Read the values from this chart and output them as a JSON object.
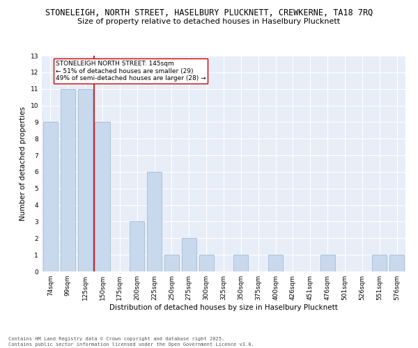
{
  "title_line1": "STONELEIGH, NORTH STREET, HASELBURY PLUCKNETT, CREWKERNE, TA18 7RQ",
  "title_line2": "Size of property relative to detached houses in Haselbury Plucknett",
  "xlabel": "Distribution of detached houses by size in Haselbury Plucknett",
  "ylabel": "Number of detached properties",
  "categories": [
    "74sqm",
    "99sqm",
    "125sqm",
    "150sqm",
    "175sqm",
    "200sqm",
    "225sqm",
    "250sqm",
    "275sqm",
    "300sqm",
    "325sqm",
    "350sqm",
    "375sqm",
    "400sqm",
    "426sqm",
    "451sqm",
    "476sqm",
    "501sqm",
    "526sqm",
    "551sqm",
    "576sqm"
  ],
  "values": [
    9,
    11,
    11,
    9,
    0,
    3,
    6,
    1,
    2,
    1,
    0,
    1,
    0,
    1,
    0,
    0,
    1,
    0,
    0,
    1,
    1
  ],
  "bar_color": "#c9d9ed",
  "bar_edge_color": "#a8c0d8",
  "vline_x": 2.5,
  "vline_color": "#cc0000",
  "annotation_text": "STONELEIGH NORTH STREET: 145sqm\n← 51% of detached houses are smaller (29)\n49% of semi-detached houses are larger (28) →",
  "annotation_box_color": "#ffffff",
  "annotation_box_edge": "#cc0000",
  "ylim": [
    0,
    13
  ],
  "yticks": [
    0,
    1,
    2,
    3,
    4,
    5,
    6,
    7,
    8,
    9,
    10,
    11,
    12,
    13
  ],
  "footnote": "Contains HM Land Registry data © Crown copyright and database right 2025.\nContains public sector information licensed under the Open Government Licence v3.0.",
  "bg_color": "#e8eef8",
  "title_fontsize": 8.5,
  "subtitle_fontsize": 8,
  "tick_fontsize": 6.5,
  "label_fontsize": 7.5,
  "annotation_fontsize": 6.5,
  "footnote_fontsize": 5.0
}
